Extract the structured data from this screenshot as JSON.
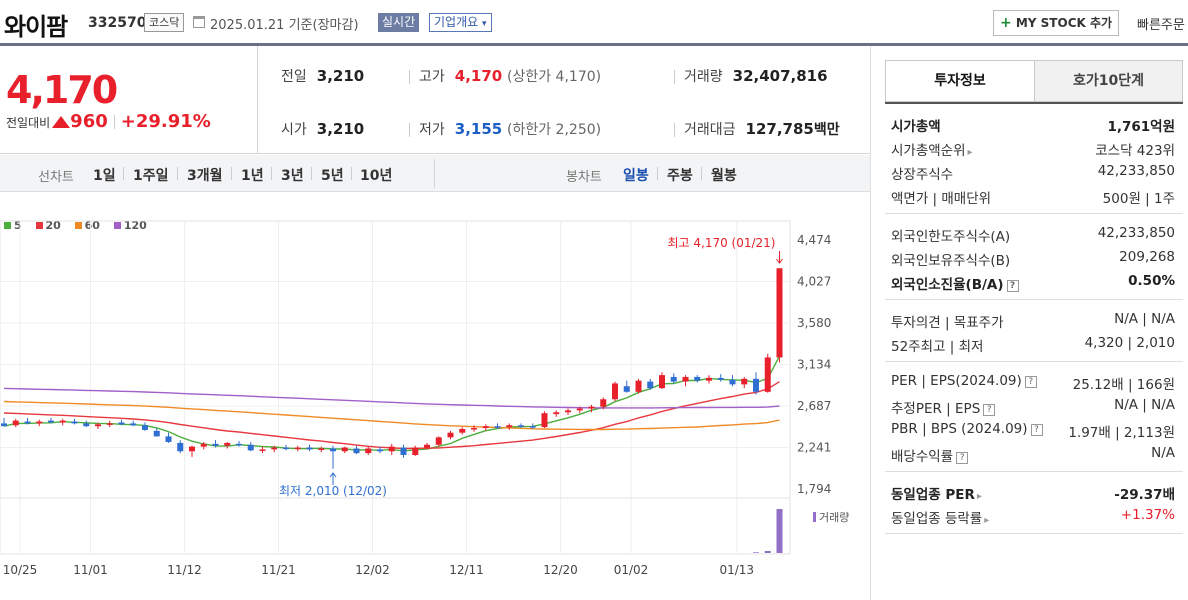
{
  "header": {
    "name": "와이팜",
    "code": "332570",
    "market": "코스닥",
    "date": "2025.01.21",
    "basis": "기준(장마감)",
    "realtime": "실시간",
    "company_info": "기업개요",
    "mystock": "MY STOCK 추가",
    "quick_order": "빠른주문"
  },
  "quote": {
    "price": "4,170",
    "change_label": "전일대비",
    "change": "960",
    "change_pct": "+29.91%",
    "prev_close_label": "전일",
    "prev_close": "3,210",
    "open_label": "시가",
    "open": "3,210",
    "high_label": "고가",
    "high": "4,170",
    "upper_limit": "(상한가 4,170)",
    "low_label": "저가",
    "low": "3,155",
    "lower_limit": "(하한가 2,250)",
    "volume_label": "거래량",
    "volume": "32,407,816",
    "amount_label": "거래대금",
    "amount": "127,785",
    "amount_unit": "백만"
  },
  "periods": {
    "line_label": "선차트",
    "line_items": [
      "1일",
      "1주일",
      "3개월",
      "1년",
      "3년",
      "5년",
      "10년"
    ],
    "candle_label": "봉차트",
    "candle_items": [
      "일봉",
      "주봉",
      "월봉"
    ],
    "active_candle": "일봉"
  },
  "chart_data": {
    "type": "candlestick",
    "ma_legend": [
      {
        "name": "5",
        "color": "#4cae3c"
      },
      {
        "name": "20",
        "color": "#e8373e"
      },
      {
        "name": "60",
        "color": "#f08a24"
      },
      {
        "name": "120",
        "color": "#a15fc9"
      }
    ],
    "y_ticks": [
      "4,474",
      "4,027",
      "3,580",
      "3,134",
      "2,687",
      "2,241",
      "1,794"
    ],
    "ylim": [
      1794,
      4474
    ],
    "x_ticks": [
      "10/25",
      "11/01",
      "11/12",
      "11/21",
      "12/02",
      "12/11",
      "12/20",
      "01/02",
      "01/13"
    ],
    "max_annotation": "최고 4,170 (01/21)",
    "min_annotation": "최저 2,010 (12/02)",
    "volume_label": "거래량",
    "up_color": "#e8202b",
    "down_color": "#2f6fd1",
    "candles": [
      {
        "o": 2500,
        "h": 2560,
        "l": 2470,
        "c": 2470
      },
      {
        "o": 2480,
        "h": 2550,
        "l": 2460,
        "c": 2530
      },
      {
        "o": 2520,
        "h": 2560,
        "l": 2490,
        "c": 2500
      },
      {
        "o": 2500,
        "h": 2540,
        "l": 2470,
        "c": 2520
      },
      {
        "o": 2530,
        "h": 2560,
        "l": 2500,
        "c": 2510
      },
      {
        "o": 2510,
        "h": 2550,
        "l": 2480,
        "c": 2530
      },
      {
        "o": 2520,
        "h": 2550,
        "l": 2490,
        "c": 2500
      },
      {
        "o": 2500,
        "h": 2530,
        "l": 2460,
        "c": 2470
      },
      {
        "o": 2470,
        "h": 2510,
        "l": 2440,
        "c": 2490
      },
      {
        "o": 2490,
        "h": 2530,
        "l": 2460,
        "c": 2500
      },
      {
        "o": 2510,
        "h": 2540,
        "l": 2480,
        "c": 2490
      },
      {
        "o": 2500,
        "h": 2530,
        "l": 2470,
        "c": 2480
      },
      {
        "o": 2480,
        "h": 2510,
        "l": 2420,
        "c": 2430
      },
      {
        "o": 2420,
        "h": 2450,
        "l": 2360,
        "c": 2360
      },
      {
        "o": 2360,
        "h": 2400,
        "l": 2290,
        "c": 2300
      },
      {
        "o": 2290,
        "h": 2320,
        "l": 2180,
        "c": 2200
      },
      {
        "o": 2200,
        "h": 2260,
        "l": 2140,
        "c": 2250
      },
      {
        "o": 2250,
        "h": 2300,
        "l": 2220,
        "c": 2280
      },
      {
        "o": 2280,
        "h": 2320,
        "l": 2240,
        "c": 2260
      },
      {
        "o": 2260,
        "h": 2300,
        "l": 2230,
        "c": 2290
      },
      {
        "o": 2280,
        "h": 2310,
        "l": 2250,
        "c": 2270
      },
      {
        "o": 2270,
        "h": 2300,
        "l": 2200,
        "c": 2210
      },
      {
        "o": 2210,
        "h": 2250,
        "l": 2180,
        "c": 2220
      },
      {
        "o": 2220,
        "h": 2260,
        "l": 2190,
        "c": 2240
      },
      {
        "o": 2240,
        "h": 2270,
        "l": 2210,
        "c": 2230
      },
      {
        "o": 2230,
        "h": 2260,
        "l": 2200,
        "c": 2240
      },
      {
        "o": 2240,
        "h": 2270,
        "l": 2200,
        "c": 2220
      },
      {
        "o": 2220,
        "h": 2250,
        "l": 2190,
        "c": 2230
      },
      {
        "o": 2230,
        "h": 2260,
        "l": 2010,
        "c": 2200
      },
      {
        "o": 2200,
        "h": 2250,
        "l": 2180,
        "c": 2240
      },
      {
        "o": 2230,
        "h": 2260,
        "l": 2170,
        "c": 2180
      },
      {
        "o": 2180,
        "h": 2250,
        "l": 2160,
        "c": 2230
      },
      {
        "o": 2220,
        "h": 2250,
        "l": 2180,
        "c": 2200
      },
      {
        "o": 2200,
        "h": 2280,
        "l": 2160,
        "c": 2250
      },
      {
        "o": 2240,
        "h": 2270,
        "l": 2130,
        "c": 2160
      },
      {
        "o": 2160,
        "h": 2260,
        "l": 2150,
        "c": 2240
      },
      {
        "o": 2240,
        "h": 2290,
        "l": 2220,
        "c": 2270
      },
      {
        "o": 2270,
        "h": 2360,
        "l": 2250,
        "c": 2350
      },
      {
        "o": 2350,
        "h": 2420,
        "l": 2330,
        "c": 2400
      },
      {
        "o": 2400,
        "h": 2460,
        "l": 2380,
        "c": 2440
      },
      {
        "o": 2440,
        "h": 2480,
        "l": 2410,
        "c": 2450
      },
      {
        "o": 2450,
        "h": 2490,
        "l": 2420,
        "c": 2470
      },
      {
        "o": 2470,
        "h": 2500,
        "l": 2440,
        "c": 2460
      },
      {
        "o": 2460,
        "h": 2500,
        "l": 2430,
        "c": 2480
      },
      {
        "o": 2480,
        "h": 2500,
        "l": 2450,
        "c": 2470
      },
      {
        "o": 2470,
        "h": 2500,
        "l": 2440,
        "c": 2460
      },
      {
        "o": 2460,
        "h": 2630,
        "l": 2450,
        "c": 2610
      },
      {
        "o": 2600,
        "h": 2640,
        "l": 2570,
        "c": 2620
      },
      {
        "o": 2620,
        "h": 2660,
        "l": 2590,
        "c": 2640
      },
      {
        "o": 2640,
        "h": 2680,
        "l": 2610,
        "c": 2660
      },
      {
        "o": 2660,
        "h": 2700,
        "l": 2620,
        "c": 2680
      },
      {
        "o": 2680,
        "h": 2780,
        "l": 2650,
        "c": 2760
      },
      {
        "o": 2760,
        "h": 2950,
        "l": 2740,
        "c": 2930
      },
      {
        "o": 2900,
        "h": 2960,
        "l": 2830,
        "c": 2840
      },
      {
        "o": 2840,
        "h": 2980,
        "l": 2820,
        "c": 2960
      },
      {
        "o": 2950,
        "h": 2980,
        "l": 2860,
        "c": 2880
      },
      {
        "o": 2880,
        "h": 3050,
        "l": 2870,
        "c": 3020
      },
      {
        "o": 3000,
        "h": 3040,
        "l": 2930,
        "c": 2950
      },
      {
        "o": 2950,
        "h": 3020,
        "l": 2900,
        "c": 3000
      },
      {
        "o": 3000,
        "h": 3020,
        "l": 2940,
        "c": 2960
      },
      {
        "o": 2960,
        "h": 3020,
        "l": 2930,
        "c": 2990
      },
      {
        "o": 2990,
        "h": 3030,
        "l": 2950,
        "c": 2970
      },
      {
        "o": 2970,
        "h": 3020,
        "l": 2900,
        "c": 2920
      },
      {
        "o": 2920,
        "h": 3000,
        "l": 2880,
        "c": 2980
      },
      {
        "o": 2980,
        "h": 3050,
        "l": 2810,
        "c": 2840
      },
      {
        "o": 2840,
        "h": 3250,
        "l": 2830,
        "c": 3210
      },
      {
        "o": 3210,
        "h": 4170,
        "l": 3155,
        "c": 4170
      }
    ],
    "volume": [
      0,
      0,
      0,
      0,
      0,
      0,
      0,
      0,
      0,
      0,
      0,
      0,
      0,
      0,
      0,
      0,
      0,
      0,
      0,
      0,
      0,
      0,
      0,
      0,
      0,
      0,
      0,
      0,
      0,
      0,
      0,
      0,
      0,
      0,
      0,
      0,
      0,
      0,
      0,
      0,
      0,
      0,
      0,
      0,
      0,
      0,
      0,
      0,
      0,
      0,
      0,
      0,
      0,
      0,
      0,
      0,
      0,
      0,
      0,
      0,
      0,
      0,
      0,
      0,
      0.5,
      1.5,
      32.4
    ]
  },
  "invest_info": {
    "tab_active": "투자정보",
    "tab_other": "호가10단계",
    "groups": [
      [
        {
          "k": "시가총액",
          "v": "1,761억원",
          "bold": true
        },
        {
          "k": "시가총액순위",
          "v": "코스닥 423위",
          "arrow": true
        },
        {
          "k": "상장주식수",
          "v": "42,233,850"
        },
        {
          "k": "액면가 | 매매단위",
          "v": "500원 | 1주"
        }
      ],
      [
        {
          "k": "외국인한도주식수(A)",
          "v": "42,233,850"
        },
        {
          "k": "외국인보유주식수(B)",
          "v": "209,268"
        },
        {
          "k": "외국인소진율(B/A)",
          "v": "0.50%",
          "bold": true,
          "help": true
        }
      ],
      [
        {
          "k": "투자의견 | 목표주가",
          "v": "N/A | N/A"
        },
        {
          "k": "52주최고 | 최저",
          "v": "4,320 | 2,010"
        }
      ],
      [
        {
          "k": "PER | EPS(2024.09)",
          "v": "25.12배 | 166원",
          "help": true
        },
        {
          "k": "추정PER | EPS",
          "v": "N/A | N/A",
          "help": true
        },
        {
          "k": "PBR | BPS (2024.09)",
          "v": "1.97배 | 2,113원",
          "help": true
        },
        {
          "k": "배당수익률",
          "v": "N/A",
          "help": true
        }
      ],
      [
        {
          "k": "동일업종 PER",
          "v": "-29.37배",
          "bold": true,
          "arrow": true
        },
        {
          "k": "동일업종 등락률",
          "v": "+1.37%",
          "arrow": true,
          "red": true
        }
      ]
    ]
  }
}
